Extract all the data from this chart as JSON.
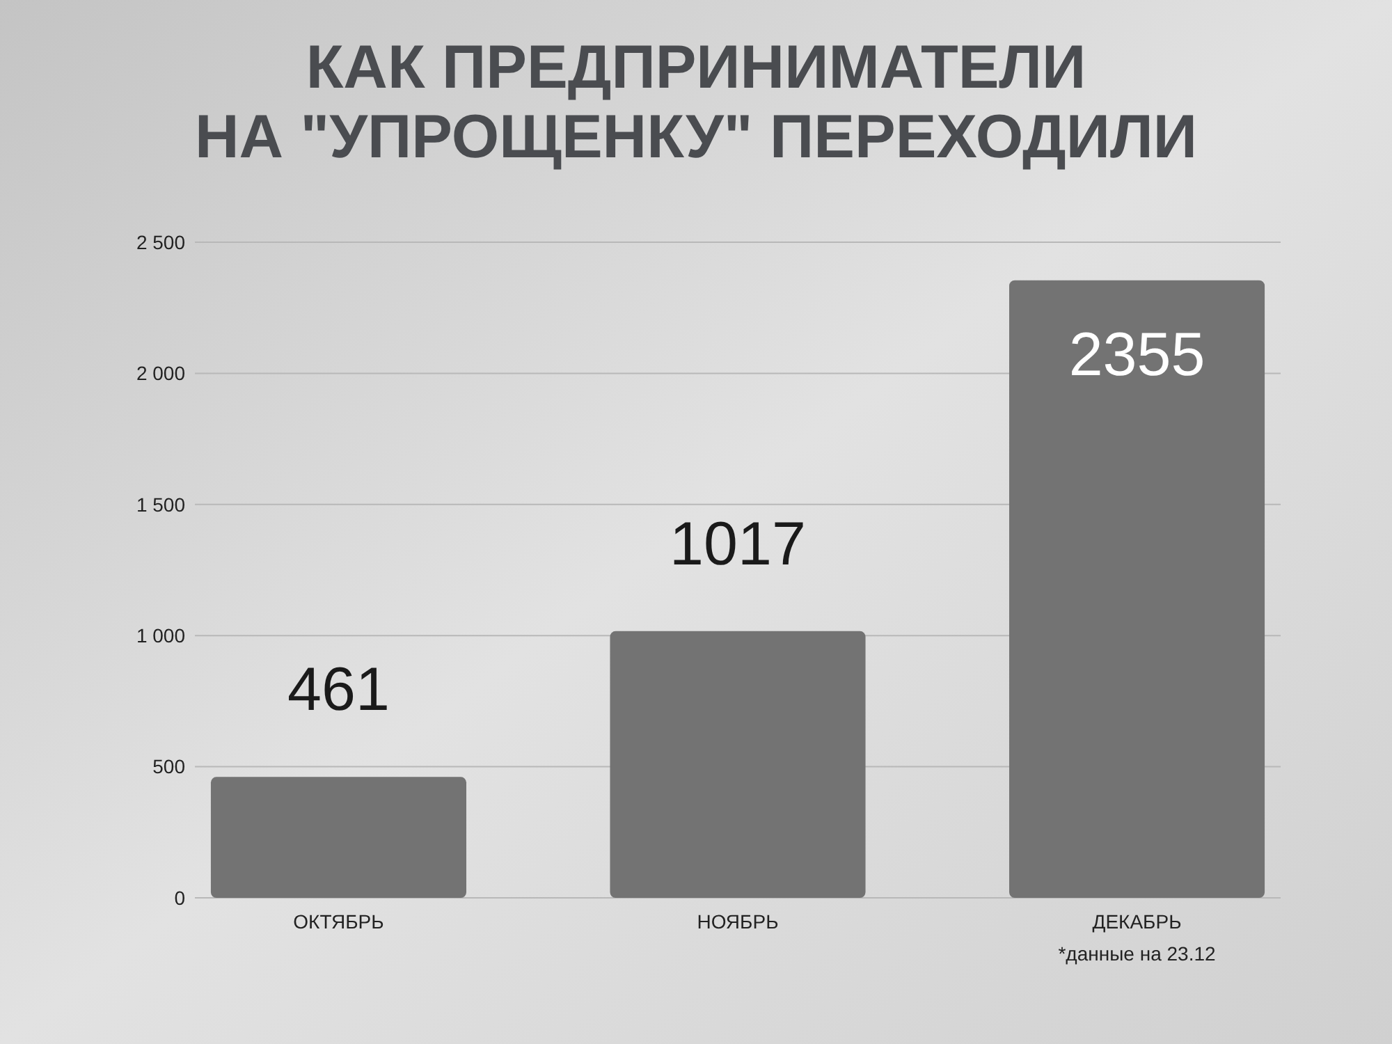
{
  "chart_data": {
    "type": "bar",
    "title": "КАК ПРЕДПРИНИМАТЕЛИ НА \"УПРОЩЕНКУ\" ПЕРЕХОДИЛИ",
    "categories": [
      "ОКТЯБРЬ",
      "НОЯБРЬ",
      "ДЕКАБРЬ"
    ],
    "values": [
      461,
      1017,
      2355
    ],
    "color": "#737373",
    "ylim": [
      0,
      2500
    ],
    "yticks": [
      0,
      500,
      {
        "value": 1000,
        "label": "1 000"
      },
      {
        "value": 1500,
        "label": "1 500"
      },
      {
        "value": 2000,
        "label": "2 000"
      },
      {
        "value": 2500,
        "label": "2 500"
      }
    ],
    "grid": "y",
    "data_labels": true,
    "annotations": [
      "*данные на 23.12"
    ]
  }
}
